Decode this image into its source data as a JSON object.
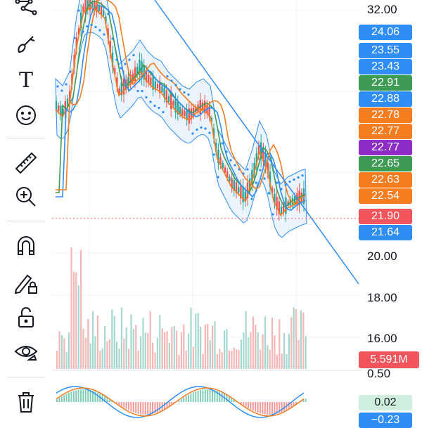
{
  "toolbar": {
    "tools": [
      {
        "name": "multipoint-tool",
        "icon": "polyline-icon"
      },
      {
        "name": "brush-tool",
        "icon": "brush-icon"
      },
      {
        "name": "text-tool",
        "icon": "text-icon"
      },
      {
        "name": "emoji-tool",
        "icon": "smiley-icon"
      },
      {
        "name": "measure-tool",
        "icon": "ruler-icon"
      },
      {
        "name": "zoom-tool",
        "icon": "zoom-in-icon"
      },
      {
        "name": "magnet-tool",
        "icon": "magnet-icon"
      },
      {
        "name": "lock-drawings-tool",
        "icon": "pencil-lock-icon"
      },
      {
        "name": "lock-all-tool",
        "icon": "unlock-icon"
      },
      {
        "name": "hide-drawings-tool",
        "icon": "eye-icon"
      },
      {
        "name": "delete-tool",
        "icon": "trash-icon"
      }
    ],
    "text_tool_glyph": "T"
  },
  "price_axis": {
    "labels": [
      "32.00",
      "20.00",
      "18.00",
      "16.00"
    ],
    "oscillator_label": "0.50"
  },
  "price_pills": [
    {
      "value": "24.06",
      "color": "#2e8ef5"
    },
    {
      "value": "23.55",
      "color": "#2e8ef5"
    },
    {
      "value": "23.43",
      "color": "#2e8ef5"
    },
    {
      "value": "22.91",
      "color": "#3d9b53"
    },
    {
      "value": "22.88",
      "color": "#2e8ef5"
    },
    {
      "value": "22.78",
      "color": "#f57c1f"
    },
    {
      "value": "22.77",
      "color": "#f57c1f"
    },
    {
      "value": "22.77",
      "color": "#8e2cc7"
    },
    {
      "value": "22.65",
      "color": "#3d9b53"
    },
    {
      "value": "22.63",
      "color": "#f57c1f"
    },
    {
      "value": "22.54",
      "color": "#f57c1f"
    },
    {
      "value": "21.90",
      "color": "#f2545b"
    },
    {
      "value": "21.64",
      "color": "#2e8ef5"
    }
  ],
  "volume_label": "5.591M",
  "oscillator_values": [
    {
      "value": "0.02",
      "color": "#cfeedd",
      "text_color": "#131722"
    },
    {
      "value": "−0.23",
      "color": "#2e8ef5",
      "text_color": "#ffffff"
    }
  ],
  "colors": {
    "up": "#26a69a",
    "down": "#ef5350",
    "accent_blue": "#2e8ef5",
    "band_fill": "#e3f0fb",
    "ma_orange": "#f57c1f",
    "ma_green": "#3d9b53"
  }
}
